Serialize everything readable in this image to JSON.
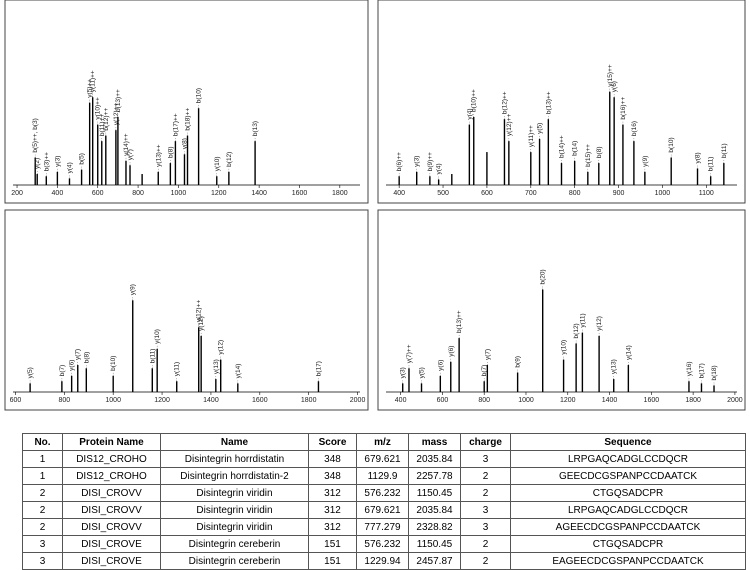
{
  "chart_data": [
    {
      "type": "bar",
      "xlim": [
        180,
        1900
      ],
      "ylim": [
        0,
        100
      ],
      "xticks": [
        200,
        400,
        600,
        800,
        1000,
        1200,
        1400,
        1600,
        1800
      ],
      "x": [
        290,
        300,
        345,
        400,
        460,
        520,
        560,
        575,
        600,
        620,
        640,
        690,
        700,
        740,
        760,
        820,
        900,
        960,
        985,
        1030,
        1045,
        1100,
        1190,
        1250,
        1380
      ],
      "values": [
        25,
        10,
        8,
        12,
        6,
        14,
        75,
        80,
        55,
        40,
        45,
        50,
        62,
        22,
        18,
        10,
        12,
        20,
        40,
        28,
        45,
        70,
        8,
        12,
        40
      ],
      "labels": [
        "b(5)++, b(3)",
        "y(2)",
        "b(3)++",
        "y(3)",
        "y(4)",
        "b(5)",
        "y(5)++",
        "y(11)++",
        "y(10)++",
        "b(11)++",
        "b(12)++",
        "y(12)++",
        "b(13)++",
        "y(14)++",
        "y(7)",
        null,
        "y(13)++",
        "b(8)",
        "b(17)++",
        "y(8)",
        "b(18)++",
        "b(10)",
        "y(10)",
        "b(12)",
        "b(13)"
      ]
    },
    {
      "type": "bar",
      "xlim": [
        370,
        1170
      ],
      "ylim": [
        0,
        100
      ],
      "xticks": [
        400,
        500,
        600,
        700,
        800,
        900,
        1000,
        1100
      ],
      "x": [
        400,
        440,
        470,
        490,
        520,
        560,
        570,
        600,
        640,
        650,
        700,
        720,
        740,
        770,
        800,
        830,
        855,
        880,
        890,
        910,
        935,
        960,
        1020,
        1080,
        1110,
        1140
      ],
      "values": [
        8,
        12,
        8,
        5,
        10,
        55,
        62,
        30,
        60,
        40,
        30,
        42,
        60,
        20,
        22,
        12,
        20,
        85,
        80,
        55,
        40,
        12,
        25,
        15,
        8,
        20
      ],
      "labels": [
        "b(6)++",
        "y(3)",
        "b(9)++",
        "y(4)",
        null,
        "y(4)",
        "b(10)++",
        null,
        "b(12)++",
        "y(12)++",
        "y(11)++",
        "y(5)",
        "b(13)++",
        "b(14)++",
        "b(14)",
        "b(15)++",
        "b(8)",
        "y(15)++",
        "y(6)",
        "b(16)++",
        "b(16)",
        "y(9)",
        "b(10)",
        "y(8)",
        "b(11)",
        "b(11)"
      ]
    },
    {
      "type": "bar",
      "xlim": [
        590,
        2010
      ],
      "ylim": [
        0,
        100
      ],
      "xticks": [
        600,
        800,
        1000,
        1200,
        1400,
        1600,
        1800,
        2000
      ],
      "x": [
        660,
        790,
        830,
        855,
        890,
        1000,
        1080,
        1160,
        1180,
        1260,
        1350,
        1360,
        1420,
        1440,
        1510,
        1840
      ],
      "values": [
        8,
        10,
        15,
        25,
        22,
        15,
        85,
        22,
        40,
        10,
        60,
        52,
        12,
        30,
        8,
        10
      ],
      "labels": [
        "y(5)",
        "b(7)",
        "y(6)",
        "y(7)",
        "b(8)",
        "b(10)",
        "y(9)",
        "b(11)",
        "y(10)",
        "y(11)",
        "y(12)++",
        "y(12)",
        "y(13)",
        "y(12)",
        "y(14)",
        "b(17)"
      ]
    },
    {
      "type": "bar",
      "xlim": [
        330,
        2010
      ],
      "ylim": [
        0,
        100
      ],
      "xticks": [
        400,
        600,
        800,
        1000,
        1200,
        1400,
        1600,
        1800,
        2000
      ],
      "x": [
        410,
        440,
        500,
        590,
        640,
        680,
        800,
        815,
        960,
        1080,
        1180,
        1240,
        1270,
        1350,
        1420,
        1490,
        1780,
        1840,
        1900
      ],
      "values": [
        8,
        22,
        8,
        15,
        28,
        50,
        10,
        25,
        18,
        95,
        30,
        45,
        55,
        52,
        12,
        25,
        10,
        8,
        6
      ],
      "labels": [
        "y(3)",
        "y(7)++",
        "y(5)",
        "y(6)",
        "y(6)",
        "b(13)++",
        "b(7)",
        "y(7)",
        "b(9)",
        "b(20)",
        "y(10)",
        "b(12)",
        "y(11)",
        "y(12)",
        "y(13)",
        "y(14)",
        "y(16)",
        "b(17)",
        "b(18)"
      ]
    }
  ],
  "table": {
    "columns": [
      "No.",
      "Protein Name",
      "Name",
      "Score",
      "m/z",
      "mass",
      "charge",
      "Sequence"
    ],
    "rows": [
      [
        "1",
        "DIS12_CROHO",
        "Disintegrin horrdistatin",
        "348",
        "679.621",
        "2035.84",
        "3",
        "LRPGAQCADGLCCDQCR"
      ],
      [
        "1",
        "DIS12_CROHO",
        "Disintegrin horrdistatin-2",
        "348",
        "1129.9",
        "2257.78",
        "2",
        "GEECDCGSPANPCCDAATCK"
      ],
      [
        "2",
        "DISI_CROVV",
        "Disintegrin viridin",
        "312",
        "576.232",
        "1150.45",
        "2",
        "CTGQSADCPR"
      ],
      [
        "2",
        "DISI_CROVV",
        "Disintegrin viridin",
        "312",
        "679.621",
        "2035.84",
        "3",
        "LRPGAQCADGLCCDQCR"
      ],
      [
        "2",
        "DISI_CROVV",
        "Disintegrin viridin",
        "312",
        "777.279",
        "2328.82",
        "3",
        "AGEECDCGSPANPCCDAATCK"
      ],
      [
        "3",
        "DISI_CROVE",
        "Disintegrin cereberin",
        "151",
        "576.232",
        "1150.45",
        "2",
        "CTGQSADCPR"
      ],
      [
        "3",
        "DISI_CROVE",
        "Disintegrin cereberin",
        "151",
        "1229.94",
        "2457.87",
        "2",
        "EAGEECDCGSPANPCCDAATCK"
      ]
    ]
  }
}
